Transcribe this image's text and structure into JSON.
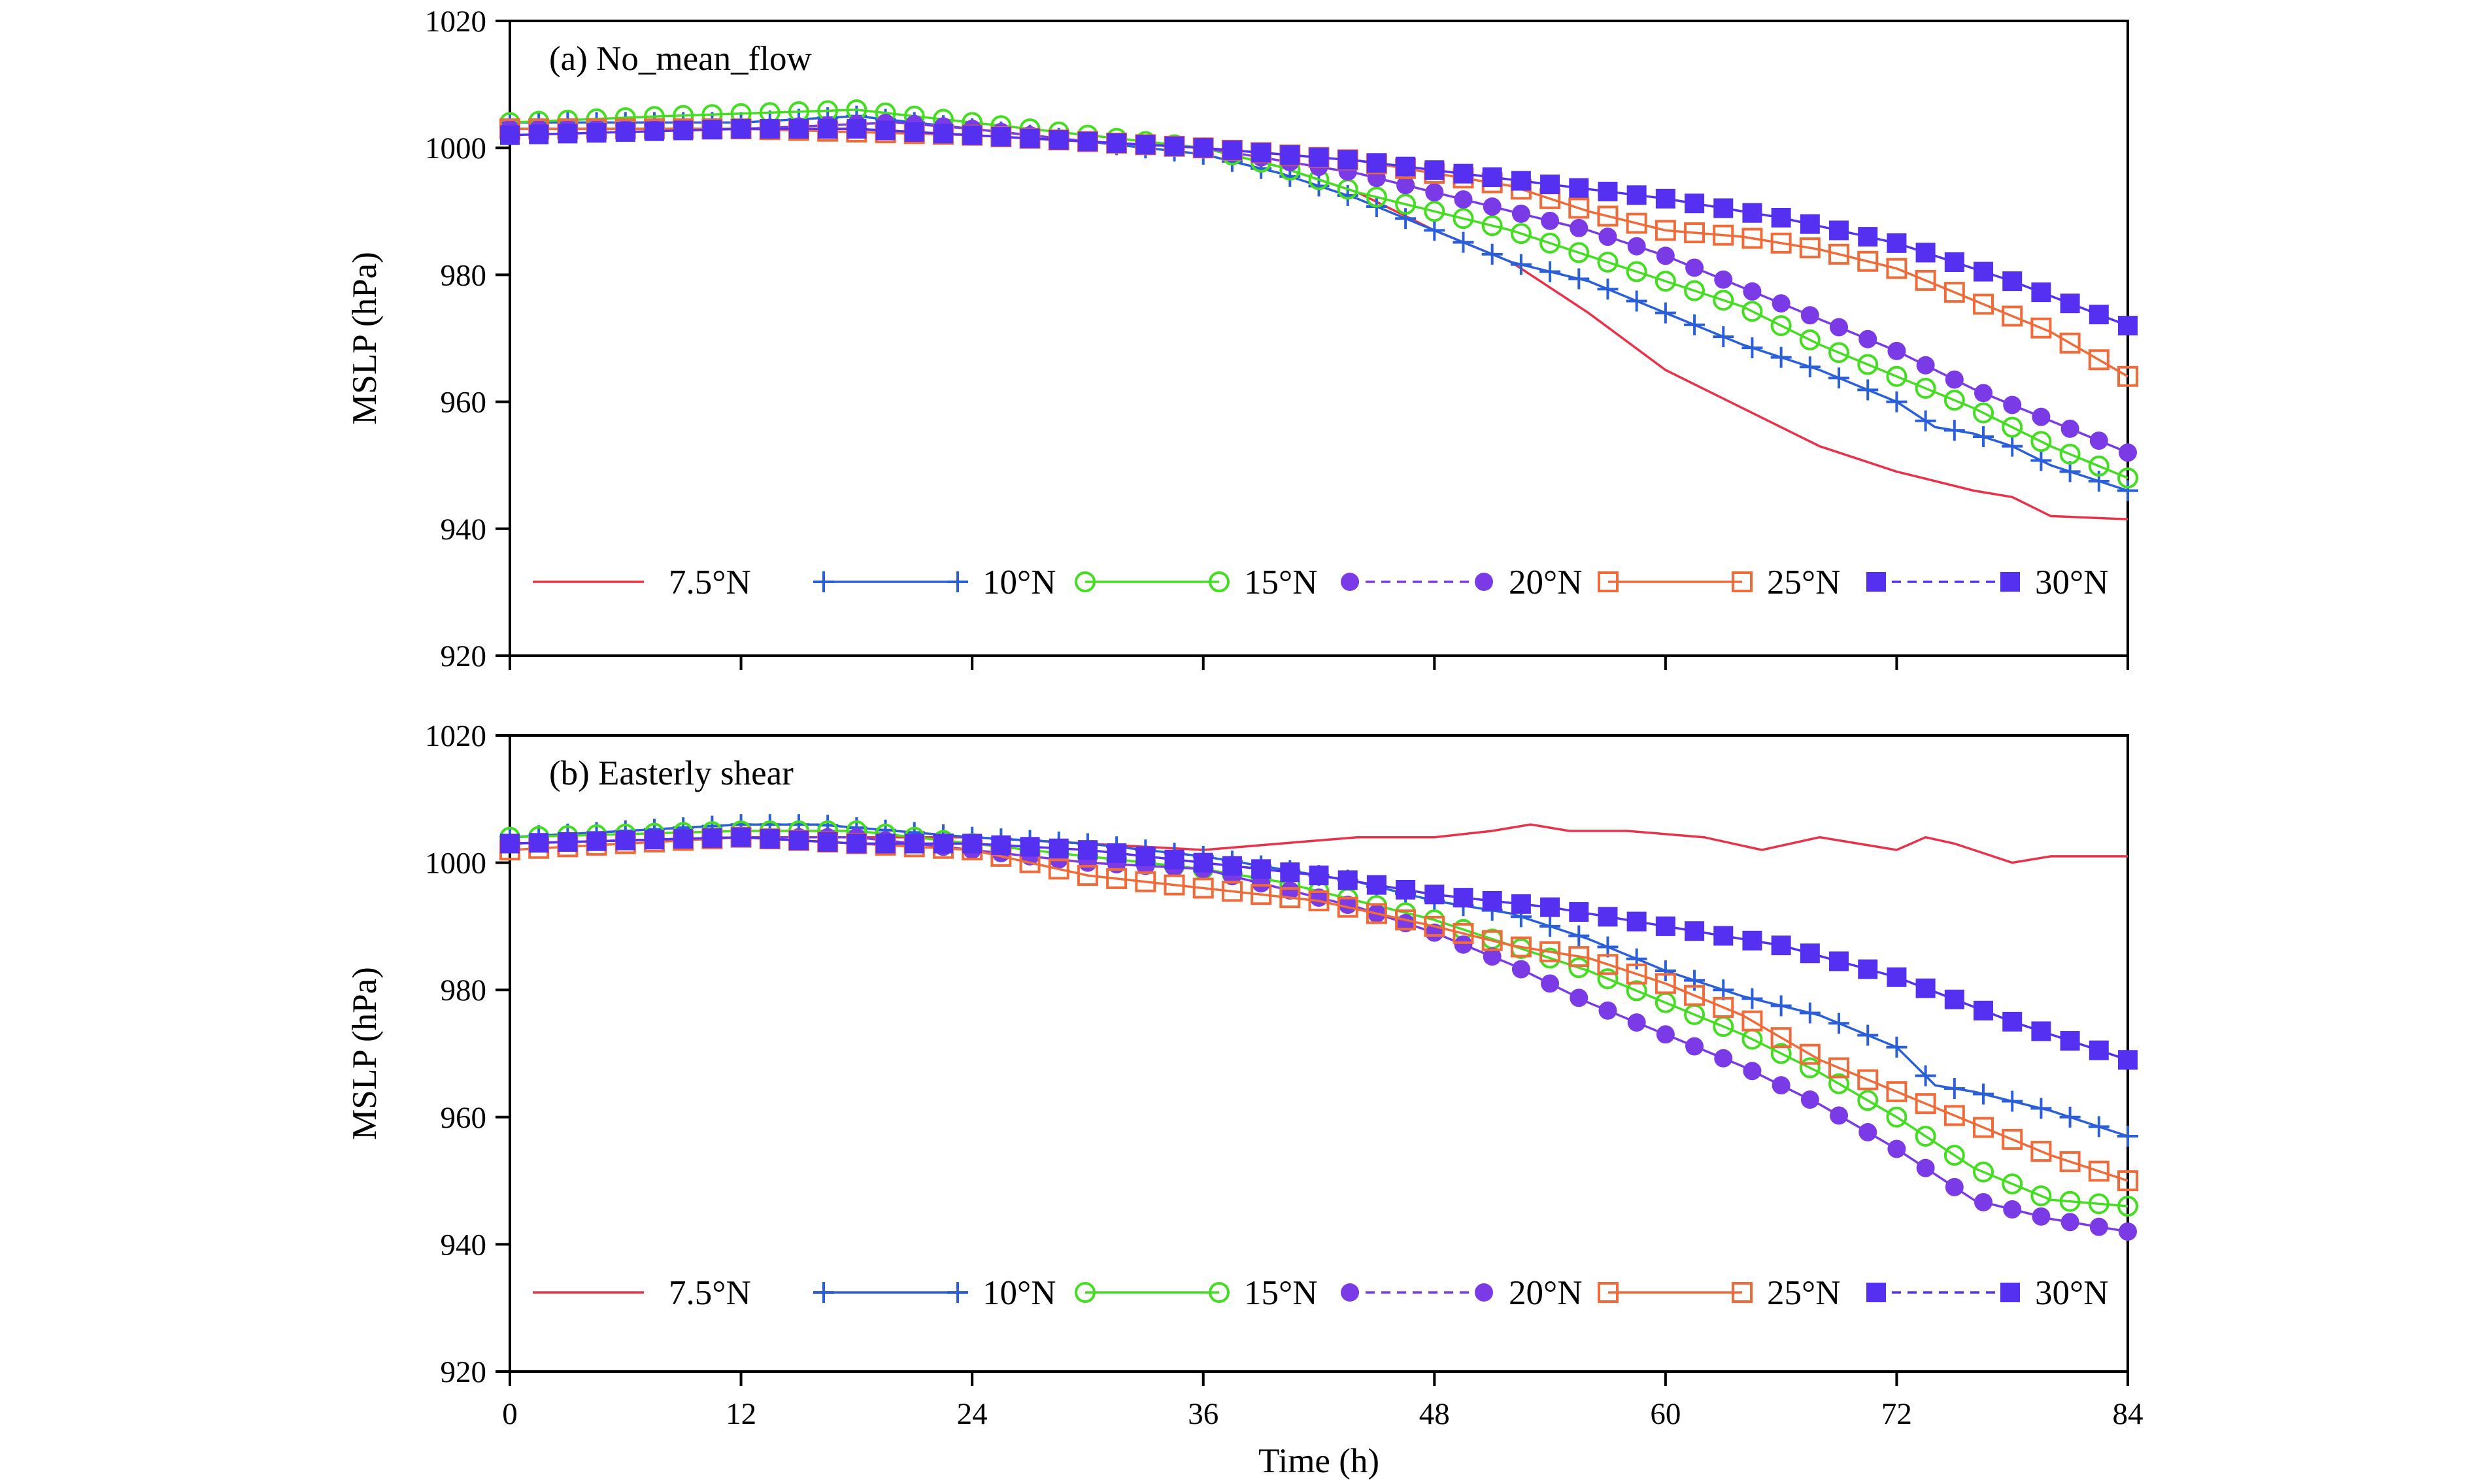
{
  "chart_data": [
    {
      "type": "line",
      "panel_label": "(a) No_mean_flow",
      "xlabel": "",
      "ylabel": "MSLP (hPa)",
      "xlim": [
        0,
        84
      ],
      "ylim": [
        920,
        1020
      ],
      "xticks": [
        0,
        12,
        24,
        36,
        48,
        60,
        72,
        84
      ],
      "yticks": [
        920,
        940,
        960,
        980,
        1000,
        1020
      ],
      "x_tick_labels_shown": false,
      "legend_position": "bottom",
      "series": [
        {
          "name": "7.5°N",
          "color": "#e8324a",
          "marker": "none",
          "dash": "solid",
          "points": [
            [
              0,
              1003
            ],
            [
              12,
              1003
            ],
            [
              18,
              1003
            ],
            [
              24,
              1002
            ],
            [
              30,
              1001
            ],
            [
              36,
              1000
            ],
            [
              40,
              997
            ],
            [
              44,
              993
            ],
            [
              48,
              987
            ],
            [
              52,
              982
            ],
            [
              56,
              974
            ],
            [
              60,
              965
            ],
            [
              64,
              959
            ],
            [
              68,
              953
            ],
            [
              72,
              949
            ],
            [
              76,
              946
            ],
            [
              78,
              945
            ],
            [
              80,
              942
            ],
            [
              84,
              941.5
            ]
          ]
        },
        {
          "name": "10°N",
          "color": "#2b5fd9",
          "marker": "plus",
          "dash": "solid",
          "points": [
            [
              0,
              1004
            ],
            [
              12,
              1004
            ],
            [
              18,
              1005
            ],
            [
              24,
              1003
            ],
            [
              30,
              1001
            ],
            [
              36,
              999
            ],
            [
              40,
              996
            ],
            [
              44,
              992
            ],
            [
              48,
              987
            ],
            [
              52,
              982
            ],
            [
              56,
              979
            ],
            [
              60,
              974
            ],
            [
              64,
              969
            ],
            [
              68,
              965
            ],
            [
              72,
              960
            ],
            [
              74,
              956
            ],
            [
              76,
              955
            ],
            [
              78,
              953
            ],
            [
              80,
              950
            ],
            [
              84,
              946
            ]
          ]
        },
        {
          "name": "15°N",
          "color": "#44dd22",
          "marker": "open-circle",
          "dash": "solid",
          "points": [
            [
              0,
              1004
            ],
            [
              8,
              1005
            ],
            [
              18,
              1006
            ],
            [
              24,
              1004
            ],
            [
              30,
              1002
            ],
            [
              36,
              1000
            ],
            [
              40,
              997
            ],
            [
              44,
              993
            ],
            [
              48,
              990
            ],
            [
              52,
              987
            ],
            [
              56,
              983
            ],
            [
              60,
              979
            ],
            [
              64,
              975
            ],
            [
              68,
              969
            ],
            [
              72,
              964
            ],
            [
              76,
              959
            ],
            [
              80,
              953
            ],
            [
              84,
              948
            ]
          ]
        },
        {
          "name": "20°N",
          "color": "#7a3be6",
          "marker": "filled-circle",
          "dash": "dashed",
          "points": [
            [
              0,
              1003
            ],
            [
              12,
              1003
            ],
            [
              20,
              1004
            ],
            [
              24,
              1003
            ],
            [
              30,
              1001
            ],
            [
              36,
              1000
            ],
            [
              40,
              998
            ],
            [
              44,
              996
            ],
            [
              48,
              993
            ],
            [
              52,
              990
            ],
            [
              56,
              987
            ],
            [
              60,
              983
            ],
            [
              64,
              978
            ],
            [
              68,
              973
            ],
            [
              72,
              968
            ],
            [
              76,
              962
            ],
            [
              80,
              957
            ],
            [
              84,
              952
            ]
          ]
        },
        {
          "name": "25°N",
          "color": "#ef6c3a",
          "marker": "open-square",
          "dash": "solid",
          "points": [
            [
              0,
              1003
            ],
            [
              12,
              1003
            ],
            [
              24,
              1002
            ],
            [
              36,
              1000
            ],
            [
              44,
              998
            ],
            [
              52,
              994
            ],
            [
              56,
              990
            ],
            [
              60,
              987
            ],
            [
              64,
              986
            ],
            [
              68,
              984
            ],
            [
              72,
              981
            ],
            [
              76,
              976
            ],
            [
              80,
              971
            ],
            [
              84,
              964
            ]
          ]
        },
        {
          "name": "30°N",
          "color": "#5530f0",
          "marker": "filled-square",
          "dash": "dashed",
          "points": [
            [
              0,
              1002
            ],
            [
              12,
              1003
            ],
            [
              18,
              1003
            ],
            [
              24,
              1002
            ],
            [
              36,
              1000
            ],
            [
              44,
              998
            ],
            [
              52,
              995
            ],
            [
              60,
              992
            ],
            [
              66,
              989
            ],
            [
              72,
              985
            ],
            [
              78,
              979
            ],
            [
              84,
              972
            ]
          ]
        }
      ]
    },
    {
      "type": "line",
      "panel_label": "(b) Easterly shear",
      "xlabel": "Time (h)",
      "ylabel": "MSLP (hPa)",
      "xlim": [
        0,
        84
      ],
      "ylim": [
        920,
        1020
      ],
      "xticks": [
        0,
        12,
        24,
        36,
        48,
        60,
        72,
        84
      ],
      "yticks": [
        920,
        940,
        960,
        980,
        1000,
        1020
      ],
      "x_tick_labels_shown": true,
      "legend_position": "bottom",
      "series": [
        {
          "name": "7.5°N",
          "color": "#e8324a",
          "marker": "none",
          "dash": "solid",
          "points": [
            [
              0,
              1003
            ],
            [
              12,
              1004
            ],
            [
              24,
              1004
            ],
            [
              36,
              1002
            ],
            [
              40,
              1003
            ],
            [
              44,
              1004
            ],
            [
              48,
              1004
            ],
            [
              51,
              1005
            ],
            [
              53,
              1006
            ],
            [
              55,
              1005
            ],
            [
              58,
              1005
            ],
            [
              62,
              1004
            ],
            [
              65,
              1002
            ],
            [
              68,
              1004
            ],
            [
              70,
              1003
            ],
            [
              72,
              1002
            ],
            [
              73.5,
              1004
            ],
            [
              75,
              1003
            ],
            [
              78,
              1000
            ],
            [
              80,
              1001
            ],
            [
              84,
              1001
            ]
          ]
        },
        {
          "name": "10°N",
          "color": "#2b5fd9",
          "marker": "plus",
          "dash": "solid",
          "points": [
            [
              0,
              1004
            ],
            [
              12,
              1006
            ],
            [
              16,
              1006
            ],
            [
              24,
              1004
            ],
            [
              30,
              1003
            ],
            [
              36,
              1001
            ],
            [
              40,
              999
            ],
            [
              44,
              997
            ],
            [
              48,
              994
            ],
            [
              52,
              992
            ],
            [
              56,
              988
            ],
            [
              60,
              983
            ],
            [
              64,
              979
            ],
            [
              68,
              976
            ],
            [
              72,
              971
            ],
            [
              74,
              965
            ],
            [
              76,
              964
            ],
            [
              80,
              961
            ],
            [
              84,
              957
            ]
          ]
        },
        {
          "name": "15°N",
          "color": "#44dd22",
          "marker": "open-circle",
          "dash": "solid",
          "points": [
            [
              0,
              1004
            ],
            [
              12,
              1005
            ],
            [
              18,
              1005
            ],
            [
              24,
              1003
            ],
            [
              30,
              1001
            ],
            [
              36,
              999
            ],
            [
              40,
              997
            ],
            [
              44,
              994
            ],
            [
              48,
              991
            ],
            [
              52,
              987
            ],
            [
              56,
              983
            ],
            [
              60,
              978
            ],
            [
              64,
              973
            ],
            [
              68,
              967
            ],
            [
              72,
              960
            ],
            [
              76,
              952
            ],
            [
              80,
              947
            ],
            [
              84,
              946
            ]
          ]
        },
        {
          "name": "20°N",
          "color": "#7a3be6",
          "marker": "filled-circle",
          "dash": "dashed",
          "points": [
            [
              0,
              1003
            ],
            [
              12,
              1004
            ],
            [
              18,
              1004
            ],
            [
              24,
              1002
            ],
            [
              30,
              1000
            ],
            [
              36,
              999
            ],
            [
              40,
              996
            ],
            [
              44,
              993
            ],
            [
              48,
              989
            ],
            [
              52,
              984
            ],
            [
              56,
              978
            ],
            [
              60,
              973
            ],
            [
              64,
              968
            ],
            [
              68,
              962
            ],
            [
              72,
              955
            ],
            [
              76,
              947
            ],
            [
              80,
              944
            ],
            [
              84,
              942
            ]
          ]
        },
        {
          "name": "25°N",
          "color": "#ef6c3a",
          "marker": "open-square",
          "dash": "solid",
          "points": [
            [
              0,
              1002
            ],
            [
              12,
              1004
            ],
            [
              18,
              1003
            ],
            [
              24,
              1002
            ],
            [
              30,
              998
            ],
            [
              36,
              996
            ],
            [
              42,
              994
            ],
            [
              48,
              990
            ],
            [
              52,
              987
            ],
            [
              56,
              985
            ],
            [
              60,
              981
            ],
            [
              64,
              976
            ],
            [
              68,
              969
            ],
            [
              72,
              964
            ],
            [
              76,
              959
            ],
            [
              80,
              954
            ],
            [
              84,
              950
            ]
          ]
        },
        {
          "name": "30°N",
          "color": "#5530f0",
          "marker": "filled-square",
          "dash": "dashed",
          "points": [
            [
              0,
              1003
            ],
            [
              12,
              1004
            ],
            [
              18,
              1003
            ],
            [
              24,
              1003
            ],
            [
              30,
              1002
            ],
            [
              36,
              1000
            ],
            [
              42,
              998
            ],
            [
              48,
              995
            ],
            [
              54,
              993
            ],
            [
              60,
              990
            ],
            [
              66,
              987
            ],
            [
              72,
              982
            ],
            [
              78,
              975
            ],
            [
              84,
              969
            ]
          ]
        }
      ]
    }
  ]
}
